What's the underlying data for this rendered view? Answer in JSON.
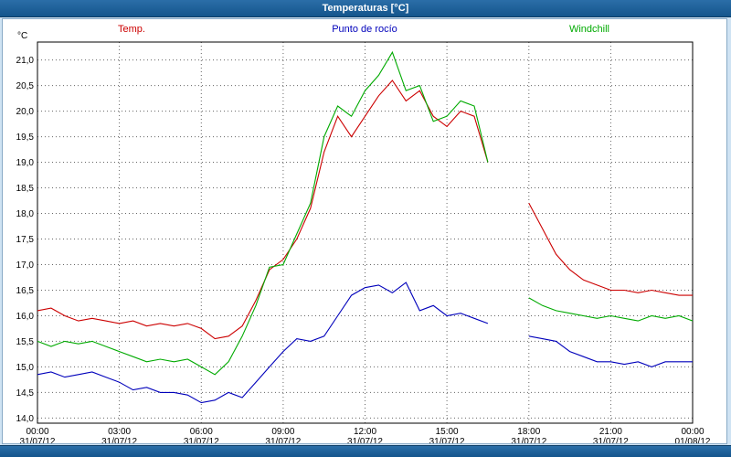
{
  "titlebar": {
    "title": "Temperaturas [°C]"
  },
  "legend": [
    {
      "label": "Temp.",
      "color": "#cc0000"
    },
    {
      "label": "Punto de rocío",
      "color": "#0000bb"
    },
    {
      "label": "Windchill",
      "color": "#00aa00"
    }
  ],
  "axis_unit": "°C",
  "chart_data": {
    "type": "line",
    "title": "Temperaturas [°C]",
    "xlabel": "",
    "ylabel": "°C",
    "grid": "dashed",
    "legend_position": "top",
    "xlim": [
      0,
      24
    ],
    "ylim": [
      13.9,
      21.35
    ],
    "x_unit": "hours since 31/07/12 00:00",
    "x": [
      0,
      0.5,
      1,
      1.5,
      2,
      2.5,
      3,
      3.5,
      4,
      4.5,
      5,
      5.5,
      6,
      6.5,
      7,
      7.5,
      8,
      8.5,
      9,
      9.5,
      10,
      10.5,
      11,
      11.5,
      12,
      12.5,
      13,
      13.5,
      14,
      14.5,
      15,
      15.5,
      16,
      16.5,
      17,
      17.5,
      18,
      18.5,
      19,
      19.5,
      20,
      20.5,
      21,
      21.5,
      22,
      22.5,
      23,
      23.5,
      24
    ],
    "series": [
      {
        "name": "Temp.",
        "color": "#cc0000",
        "values": [
          16.1,
          16.15,
          16.0,
          15.9,
          15.95,
          15.9,
          15.85,
          15.9,
          15.8,
          15.85,
          15.8,
          15.85,
          15.75,
          15.55,
          15.6,
          15.8,
          16.3,
          16.9,
          17.1,
          17.5,
          18.1,
          19.2,
          19.9,
          19.5,
          19.9,
          20.3,
          20.6,
          20.2,
          20.4,
          19.9,
          19.7,
          20.0,
          19.9,
          19.0,
          null,
          null,
          18.2,
          17.7,
          17.2,
          16.9,
          16.7,
          16.6,
          16.5,
          16.5,
          16.45,
          16.5,
          16.45,
          16.4,
          16.4
        ]
      },
      {
        "name": "Punto de rocío",
        "color": "#0000bb",
        "values": [
          14.85,
          14.9,
          14.8,
          14.85,
          14.9,
          14.8,
          14.7,
          14.55,
          14.6,
          14.5,
          14.5,
          14.45,
          14.3,
          14.35,
          14.5,
          14.4,
          14.7,
          15.0,
          15.3,
          15.55,
          15.5,
          15.6,
          16.0,
          16.4,
          16.55,
          16.6,
          16.45,
          16.65,
          16.1,
          16.2,
          16.0,
          16.05,
          15.95,
          15.85,
          null,
          null,
          15.6,
          15.55,
          15.5,
          15.3,
          15.2,
          15.1,
          15.1,
          15.05,
          15.1,
          15.0,
          15.1,
          15.1,
          15.1
        ]
      },
      {
        "name": "Windchill",
        "color": "#00aa00",
        "values": [
          15.5,
          15.4,
          15.5,
          15.45,
          15.5,
          15.4,
          15.3,
          15.2,
          15.1,
          15.15,
          15.1,
          15.15,
          15.0,
          14.85,
          15.1,
          15.6,
          16.2,
          16.95,
          17.0,
          17.6,
          18.2,
          19.5,
          20.1,
          19.9,
          20.4,
          20.7,
          21.15,
          20.4,
          20.5,
          19.8,
          19.9,
          20.2,
          20.1,
          19.0,
          null,
          null,
          16.35,
          16.2,
          16.1,
          16.05,
          16.0,
          15.95,
          16.0,
          15.95,
          15.9,
          16.0,
          15.95,
          16.0,
          15.9
        ]
      }
    ],
    "y_ticks": {
      "values": [
        21.0,
        20.5,
        20.0,
        19.5,
        19.0,
        18.5,
        18.0,
        17.5,
        17.0,
        16.5,
        16.0,
        15.5,
        15.0,
        14.5,
        14.0
      ],
      "labels": [
        "21,0",
        "20,5",
        "20,0",
        "19,5",
        "19,0",
        "18,5",
        "18,0",
        "17,5",
        "17,0",
        "16,5",
        "16,0",
        "15,5",
        "15,0",
        "14,5",
        "14,0"
      ]
    },
    "x_ticks": {
      "values": [
        0,
        3,
        6,
        9,
        12,
        15,
        18,
        21,
        24
      ],
      "time_labels": [
        "00:00",
        "03:00",
        "06:00",
        "09:00",
        "12:00",
        "15:00",
        "18:00",
        "21:00",
        "00:00"
      ],
      "date_labels": [
        "31/07/12",
        "31/07/12",
        "31/07/12",
        "31/07/12",
        "31/07/12",
        "31/07/12",
        "31/07/12",
        "31/07/12",
        "01/08/12"
      ]
    }
  }
}
